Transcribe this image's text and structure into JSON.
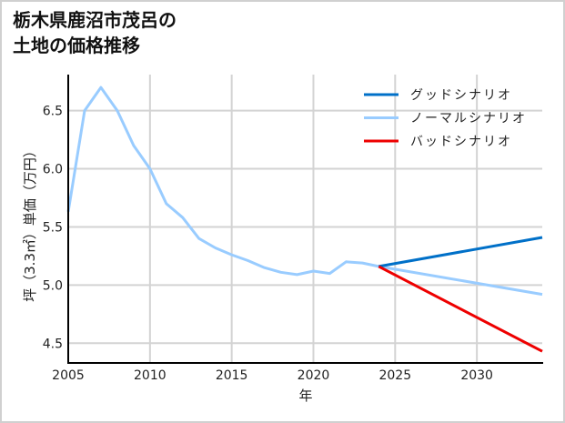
{
  "title": {
    "line1": "栃木県鹿沼市茂呂の",
    "line2": "土地の価格推移"
  },
  "chart_data": {
    "type": "line",
    "title": "栃木県鹿沼市茂呂の土地の価格推移",
    "xlabel": "年",
    "ylabel": "坪（3.3㎡）単価（万円）",
    "xlim": [
      2005,
      2034
    ],
    "ylim": [
      4.33,
      6.81
    ],
    "xticks": [
      2005,
      2010,
      2015,
      2020,
      2025,
      2030
    ],
    "xtick_labels": [
      "2005",
      "2010",
      "2015",
      "2020",
      "2025",
      "2030"
    ],
    "yticks": [
      4.5,
      5.0,
      5.5,
      6.0,
      6.5
    ],
    "ytick_labels": [
      "4.5",
      "5.0",
      "5.5",
      "6.0",
      "6.5"
    ],
    "grid": true,
    "legend_position": "upper right",
    "series": [
      {
        "name": "グッドシナリオ",
        "color": "#0070c8",
        "x": [
          2024,
          2034
        ],
        "values": [
          5.16,
          5.41
        ]
      },
      {
        "name": "ノーマルシナリオ",
        "color": "#99ccff",
        "x": [
          2005,
          2006,
          2007,
          2008,
          2009,
          2010,
          2011,
          2012,
          2013,
          2014,
          2015,
          2016,
          2017,
          2018,
          2019,
          2020,
          2021,
          2022,
          2023,
          2024,
          2034
        ],
        "values": [
          5.63,
          6.5,
          6.7,
          6.5,
          6.2,
          6.0,
          5.7,
          5.58,
          5.4,
          5.32,
          5.26,
          5.21,
          5.15,
          5.11,
          5.09,
          5.12,
          5.1,
          5.2,
          5.19,
          5.16,
          4.92
        ]
      },
      {
        "name": "バッドシナリオ",
        "color": "#ee0000",
        "x": [
          2024,
          2034
        ],
        "values": [
          5.16,
          4.43
        ]
      }
    ]
  }
}
